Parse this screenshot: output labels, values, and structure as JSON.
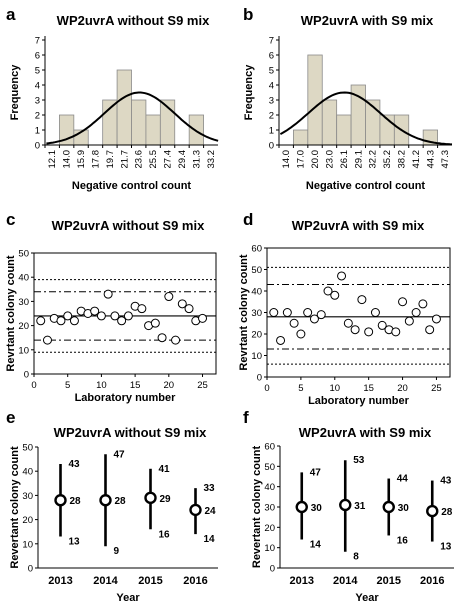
{
  "panels": {
    "a": {
      "label": "a"
    },
    "b": {
      "label": "b"
    },
    "c": {
      "label": "c"
    },
    "d": {
      "label": "d"
    },
    "e": {
      "label": "e"
    },
    "f": {
      "label": "f"
    }
  },
  "chart_data": [
    {
      "id": "a",
      "type": "bar",
      "title": "WP2uvrA without S9 mix",
      "xlabel": "Negative control count",
      "ylabel": "Frequency",
      "categories": [
        "12.1",
        "14.0",
        "15.9",
        "17.8",
        "19.7",
        "21.7",
        "23.6",
        "25.5",
        "27.4",
        "29.4",
        "31.3",
        "33.2"
      ],
      "values": [
        0,
        2,
        1,
        0,
        3,
        5,
        3,
        2,
        3,
        0,
        2,
        0
      ],
      "ylim": [
        0,
        7
      ],
      "yticks": [
        "0",
        "1",
        "2",
        "3",
        "4",
        "5",
        "6",
        "7"
      ],
      "fit_curve": {
        "type": "normal",
        "mean": 23.6,
        "sd": 4.6,
        "peak": 3.5
      },
      "grid": false
    },
    {
      "id": "b",
      "type": "bar",
      "title": "WP2uvrA with S9 mix",
      "xlabel": "Negative control count",
      "ylabel": "Frequency",
      "categories": [
        "14.0",
        "17.0",
        "20.0",
        "23.0",
        "26.1",
        "29.1",
        "32.2",
        "35.2",
        "38.2",
        "41.2",
        "44.3",
        "47.3"
      ],
      "values": [
        0,
        1,
        6,
        3,
        2,
        4,
        3,
        2,
        2,
        0,
        1,
        0
      ],
      "ylim": [
        0,
        7
      ],
      "yticks": [
        "0",
        "1",
        "2",
        "3",
        "4",
        "5",
        "6",
        "7"
      ],
      "fit_curve": {
        "type": "normal",
        "mean": 26.1,
        "sd": 7.5,
        "peak": 3.5
      },
      "grid": false
    },
    {
      "id": "c",
      "type": "scatter",
      "title": "WP2uvrA without S9 mix",
      "xlabel": "Laboratory number",
      "ylabel": "Revrtant colony count",
      "xlim": [
        0,
        27
      ],
      "ylim": [
        0,
        50
      ],
      "xticks": [
        "0",
        "5",
        "10",
        "15",
        "20",
        "25"
      ],
      "yticks": [
        "0",
        "10",
        "20",
        "30",
        "40",
        "50"
      ],
      "points": [
        [
          1,
          22
        ],
        [
          2,
          14
        ],
        [
          3,
          23
        ],
        [
          4,
          22
        ],
        [
          5,
          24
        ],
        [
          6,
          22
        ],
        [
          7,
          26
        ],
        [
          8,
          25
        ],
        [
          9,
          26
        ],
        [
          10,
          24
        ],
        [
          11,
          33
        ],
        [
          12,
          24
        ],
        [
          13,
          22
        ],
        [
          14,
          24
        ],
        [
          15,
          28
        ],
        [
          16,
          27
        ],
        [
          17,
          20
        ],
        [
          18,
          21
        ],
        [
          19,
          15
        ],
        [
          20,
          32
        ],
        [
          21,
          14
        ],
        [
          22,
          29
        ],
        [
          23,
          27
        ],
        [
          24,
          22
        ],
        [
          25,
          23
        ]
      ],
      "reference_lines": [
        {
          "y": 24,
          "style": "solid"
        },
        {
          "y": 34,
          "style": "dashdot"
        },
        {
          "y": 14,
          "style": "dashdot"
        },
        {
          "y": 39,
          "style": "dotted"
        },
        {
          "y": 9,
          "style": "dotted"
        }
      ],
      "grid": false
    },
    {
      "id": "d",
      "type": "scatter",
      "title": "WP2uvrA with S9 mix",
      "xlabel": "Laboratory number",
      "ylabel": "Revrtant colony count",
      "xlim": [
        0,
        27
      ],
      "ylim": [
        0,
        60
      ],
      "xticks": [
        "0",
        "5",
        "10",
        "15",
        "20",
        "25"
      ],
      "yticks": [
        "0",
        "10",
        "20",
        "30",
        "40",
        "50",
        "60"
      ],
      "points": [
        [
          1,
          30
        ],
        [
          2,
          17
        ],
        [
          3,
          30
        ],
        [
          4,
          25
        ],
        [
          5,
          20
        ],
        [
          6,
          30
        ],
        [
          7,
          27
        ],
        [
          8,
          29
        ],
        [
          9,
          40
        ],
        [
          10,
          38
        ],
        [
          11,
          47
        ],
        [
          12,
          25
        ],
        [
          13,
          22
        ],
        [
          14,
          36
        ],
        [
          15,
          21
        ],
        [
          16,
          30
        ],
        [
          17,
          24
        ],
        [
          18,
          22
        ],
        [
          19,
          21
        ],
        [
          20,
          35
        ],
        [
          21,
          26
        ],
        [
          22,
          30
        ],
        [
          23,
          34
        ],
        [
          24,
          22
        ],
        [
          25,
          27
        ]
      ],
      "reference_lines": [
        {
          "y": 28,
          "style": "solid"
        },
        {
          "y": 43,
          "style": "dashdot"
        },
        {
          "y": 13,
          "style": "dashdot"
        },
        {
          "y": 51,
          "style": "dotted"
        },
        {
          "y": 6,
          "style": "dotted"
        }
      ],
      "grid": false
    },
    {
      "id": "e",
      "type": "range",
      "title": "WP2uvrA without S9 mix",
      "xlabel": "Year",
      "ylabel": "Revertant colony count",
      "ylim": [
        0,
        50
      ],
      "yticks": [
        "0",
        "10",
        "20",
        "30",
        "40",
        "50"
      ],
      "categories": [
        "2013",
        "2014",
        "2015",
        "2016"
      ],
      "mean": [
        28,
        28,
        29,
        24
      ],
      "low": [
        13,
        9,
        16,
        14
      ],
      "high": [
        43,
        47,
        41,
        33
      ],
      "grid": false
    },
    {
      "id": "f",
      "type": "range",
      "title": "WP2uvrA with S9 mix",
      "xlabel": "Year",
      "ylabel": "Revertant colony count",
      "ylim": [
        0,
        60
      ],
      "yticks": [
        "0",
        "10",
        "20",
        "30",
        "40",
        "50",
        "60"
      ],
      "categories": [
        "2013",
        "2014",
        "2015",
        "2016"
      ],
      "mean": [
        30,
        31,
        30,
        28
      ],
      "low": [
        14,
        8,
        16,
        13
      ],
      "high": [
        47,
        53,
        44,
        43
      ],
      "grid": false
    }
  ]
}
